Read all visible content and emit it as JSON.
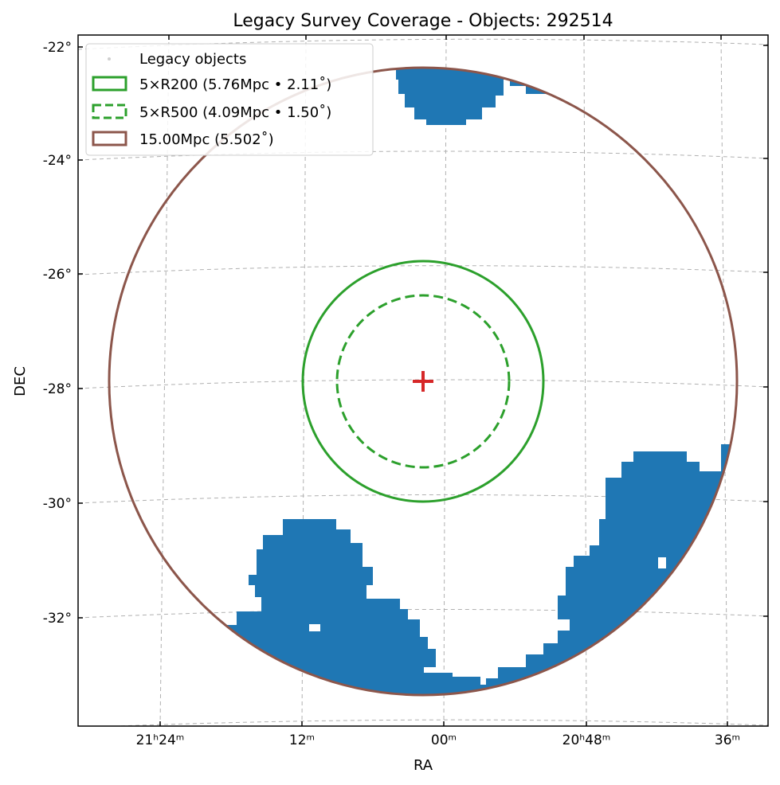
{
  "chart_data": {
    "type": "scatter",
    "title": "Legacy Survey Coverage - Objects: 292514",
    "xlabel": "RA",
    "ylabel": "DEC",
    "projection": "sky (RA increases to the left)",
    "grid": true,
    "legend_position": "top-left",
    "x_ticks": [
      {
        "label": "21ʰ24ᵐ",
        "ra_deg": 321.0
      },
      {
        "label": "12ᵐ",
        "ra_deg": 318.0
      },
      {
        "label": "00ᵐ",
        "ra_deg": 315.0
      },
      {
        "label": "20ʰ48ᵐ",
        "ra_deg": 312.0
      },
      {
        "label": "36ᵐ",
        "ra_deg": 309.0
      }
    ],
    "y_ticks": [
      {
        "label": "-22°",
        "dec_deg": -22
      },
      {
        "label": "-24°",
        "dec_deg": -24
      },
      {
        "label": "-26°",
        "dec_deg": -26
      },
      {
        "label": "-28°",
        "dec_deg": -28
      },
      {
        "label": "-30°",
        "dec_deg": -30
      },
      {
        "label": "-32°",
        "dec_deg": -32
      }
    ],
    "center": {
      "ra_deg": 315.4,
      "dec_deg": -27.86,
      "marker": "+",
      "color": "#d62728"
    },
    "circles": [
      {
        "name": "5×R200 (5.76Mpc • 2.11˚)",
        "radius_deg": 2.11,
        "style": "solid",
        "color": "#2ca02c"
      },
      {
        "name": "5×R500 (4.09Mpc • 1.50˚)",
        "radius_deg": 1.5,
        "style": "dashed",
        "color": "#2ca02c"
      },
      {
        "name": "15.00Mpc (5.502˚)",
        "radius_deg": 5.502,
        "style": "solid",
        "color": "#8c564b"
      }
    ],
    "series": [
      {
        "name": "Legacy objects",
        "count": 292514,
        "color": "#1f77b4"
      }
    ]
  }
}
